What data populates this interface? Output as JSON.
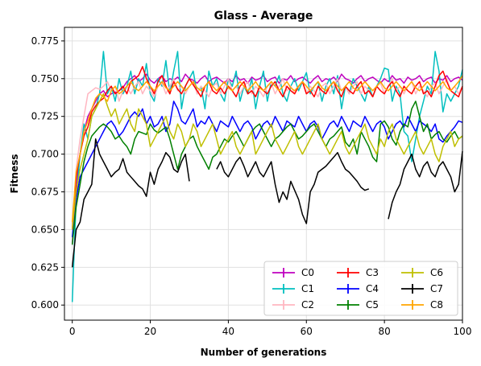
{
  "chart_data": {
    "type": "line",
    "title": "Glass - Average",
    "xlabel": "Number of generations",
    "ylabel": "Fitness",
    "xlim": [
      -2,
      100
    ],
    "ylim": [
      0.59,
      0.784
    ],
    "xticks": [
      0,
      20,
      40,
      60,
      80,
      100
    ],
    "yticks": [
      0.6,
      0.625,
      0.65,
      0.675,
      0.7,
      0.725,
      0.75,
      0.775
    ],
    "x_tick_labels": [
      "0",
      "20",
      "40",
      "60",
      "80",
      "100"
    ],
    "y_tick_labels": [
      "0.600",
      "0.625",
      "0.650",
      "0.675",
      "0.700",
      "0.725",
      "0.750",
      "0.775"
    ],
    "grid": true,
    "legend": {
      "placement": "lower-right",
      "columns": 3
    },
    "series": [
      {
        "name": "C0",
        "color": "#bf00bf",
        "values": [
          0.64,
          0.68,
          0.7,
          0.715,
          0.725,
          0.73,
          0.735,
          0.74,
          0.742,
          0.738,
          0.74,
          0.741,
          0.742,
          0.744,
          0.748,
          0.75,
          0.752,
          0.748,
          0.75,
          0.753,
          0.749,
          0.747,
          0.75,
          0.752,
          0.748,
          0.75,
          0.749,
          0.751,
          0.748,
          0.753,
          0.75,
          0.749,
          0.747,
          0.75,
          0.752,
          0.748,
          0.75,
          0.751,
          0.749,
          0.747,
          0.75,
          0.748,
          0.752,
          0.749,
          0.75,
          0.747,
          0.751,
          0.749,
          0.75,
          0.752,
          0.748,
          0.75,
          0.751,
          0.747,
          0.75,
          0.749,
          0.752,
          0.748,
          0.75,
          0.751,
          0.749,
          0.747,
          0.75,
          0.752,
          0.748,
          0.75,
          0.749,
          0.751,
          0.748,
          0.753,
          0.75,
          0.749,
          0.747,
          0.75,
          0.752,
          0.748,
          0.75,
          0.751,
          0.749,
          0.747,
          0.75,
          0.748,
          0.752,
          0.749,
          0.75,
          0.747,
          0.751,
          0.749,
          0.75,
          0.752,
          0.748,
          0.75,
          0.751,
          0.747,
          0.75,
          0.749,
          0.752,
          0.748,
          0.75,
          0.751,
          0.749
        ]
      },
      {
        "name": "C1",
        "color": "#00bfbf",
        "values": [
          0.602,
          0.67,
          0.7,
          0.72,
          0.71,
          0.725,
          0.73,
          0.74,
          0.768,
          0.74,
          0.745,
          0.735,
          0.75,
          0.74,
          0.745,
          0.755,
          0.74,
          0.75,
          0.745,
          0.76,
          0.74,
          0.735,
          0.75,
          0.745,
          0.762,
          0.74,
          0.755,
          0.768,
          0.73,
          0.745,
          0.75,
          0.755,
          0.74,
          0.745,
          0.73,
          0.755,
          0.745,
          0.75,
          0.74,
          0.735,
          0.75,
          0.745,
          0.755,
          0.735,
          0.745,
          0.74,
          0.75,
          0.73,
          0.745,
          0.755,
          0.735,
          0.748,
          0.745,
          0.752,
          0.74,
          0.735,
          0.745,
          0.75,
          0.742,
          0.748,
          0.754,
          0.74,
          0.745,
          0.748,
          0.735,
          0.745,
          0.75,
          0.74,
          0.752,
          0.73,
          0.745,
          0.74,
          0.75,
          0.745,
          0.74,
          0.735,
          0.745,
          0.738,
          0.745,
          0.75,
          0.757,
          0.756,
          0.735,
          0.745,
          0.74,
          0.715,
          0.712,
          0.695,
          0.71,
          0.725,
          0.735,
          0.745,
          0.74,
          0.768,
          0.755,
          0.728,
          0.74,
          0.735,
          0.74,
          0.745,
          0.756
        ]
      },
      {
        "name": "C2",
        "color": "#ffb6c1",
        "values": [
          0.65,
          0.69,
          0.71,
          0.725,
          0.74,
          0.742,
          0.744,
          0.743,
          0.745,
          0.748,
          0.742,
          0.745,
          0.735,
          0.742,
          0.745,
          0.74,
          0.745,
          0.748,
          0.74,
          0.745,
          0.742,
          0.738,
          0.745,
          0.747,
          0.74,
          0.745,
          0.75,
          0.742,
          0.745,
          0.74,
          0.745,
          0.748,
          0.74,
          0.745,
          0.742,
          0.738,
          0.745,
          0.747,
          0.74,
          0.745,
          0.75,
          0.742,
          0.745,
          0.74,
          0.745,
          0.748,
          0.74,
          0.745,
          0.742,
          0.738,
          0.745,
          0.747,
          0.74,
          0.745,
          0.75,
          0.742,
          0.745,
          0.74,
          0.745,
          0.748,
          0.74,
          0.745,
          0.742,
          0.738,
          0.745,
          0.747,
          0.74,
          0.745,
          0.75,
          0.742,
          0.745,
          0.74,
          0.745,
          0.748,
          0.74,
          0.745,
          0.742,
          0.738,
          0.745,
          0.747,
          0.74,
          0.745,
          0.75,
          0.742,
          0.745,
          0.74,
          0.745,
          0.748,
          0.74,
          0.745,
          0.742,
          0.738,
          0.745,
          0.747,
          0.74,
          0.745,
          0.75,
          0.742,
          0.745,
          0.74,
          0.745
        ]
      },
      {
        "name": "C3",
        "color": "#ff0000",
        "values": [
          0.65,
          0.685,
          0.7,
          0.712,
          0.718,
          0.728,
          0.732,
          0.735,
          0.737,
          0.742,
          0.745,
          0.74,
          0.742,
          0.745,
          0.74,
          0.748,
          0.75,
          0.752,
          0.758,
          0.75,
          0.745,
          0.74,
          0.748,
          0.752,
          0.745,
          0.74,
          0.748,
          0.743,
          0.74,
          0.745,
          0.75,
          0.746,
          0.742,
          0.738,
          0.745,
          0.748,
          0.742,
          0.74,
          0.744,
          0.74,
          0.745,
          0.742,
          0.738,
          0.745,
          0.748,
          0.74,
          0.742,
          0.738,
          0.745,
          0.742,
          0.74,
          0.745,
          0.748,
          0.742,
          0.738,
          0.745,
          0.742,
          0.74,
          0.745,
          0.748,
          0.74,
          0.742,
          0.738,
          0.745,
          0.742,
          0.74,
          0.745,
          0.748,
          0.742,
          0.738,
          0.745,
          0.742,
          0.74,
          0.745,
          0.748,
          0.74,
          0.742,
          0.738,
          0.745,
          0.742,
          0.74,
          0.745,
          0.748,
          0.742,
          0.738,
          0.745,
          0.742,
          0.74,
          0.745,
          0.748,
          0.74,
          0.742,
          0.738,
          0.745,
          0.752,
          0.755,
          0.748,
          0.742,
          0.74,
          0.738,
          0.745
        ]
      },
      {
        "name": "C4",
        "color": "#0000ff",
        "values": [
          0.645,
          0.67,
          0.685,
          0.69,
          0.695,
          0.7,
          0.705,
          0.71,
          0.715,
          0.72,
          0.722,
          0.718,
          0.712,
          0.715,
          0.72,
          0.725,
          0.728,
          0.725,
          0.73,
          0.72,
          0.725,
          0.718,
          0.72,
          0.725,
          0.715,
          0.72,
          0.735,
          0.73,
          0.722,
          0.72,
          0.725,
          0.73,
          0.718,
          0.722,
          0.72,
          0.725,
          0.72,
          0.715,
          0.722,
          0.72,
          0.718,
          0.725,
          0.72,
          0.715,
          0.72,
          0.722,
          0.718,
          0.71,
          0.715,
          0.72,
          0.722,
          0.718,
          0.725,
          0.72,
          0.715,
          0.722,
          0.72,
          0.718,
          0.725,
          0.72,
          0.715,
          0.72,
          0.722,
          0.718,
          0.71,
          0.715,
          0.72,
          0.722,
          0.718,
          0.725,
          0.72,
          0.715,
          0.722,
          0.72,
          0.718,
          0.725,
          0.72,
          0.715,
          0.72,
          0.722,
          0.718,
          0.71,
          0.715,
          0.72,
          0.722,
          0.718,
          0.725,
          0.72,
          0.715,
          0.722,
          0.72,
          0.718,
          0.715,
          0.72,
          0.71,
          0.708,
          0.712,
          0.715,
          0.718,
          0.722,
          0.721
        ]
      },
      {
        "name": "C5",
        "color": "#008000",
        "values": [
          0.64,
          0.665,
          0.68,
          0.695,
          0.705,
          0.712,
          0.715,
          0.718,
          0.72,
          0.718,
          0.715,
          0.71,
          0.712,
          0.708,
          0.705,
          0.7,
          0.71,
          0.715,
          0.714,
          0.713,
          0.72,
          0.716,
          0.714,
          0.716,
          0.718,
          0.71,
          0.7,
          0.69,
          0.7,
          0.705,
          0.71,
          0.712,
          0.705,
          0.7,
          0.695,
          0.69,
          0.698,
          0.7,
          0.705,
          0.71,
          0.708,
          0.712,
          0.715,
          0.71,
          0.705,
          0.71,
          0.715,
          0.718,
          0.72,
          0.715,
          0.71,
          0.705,
          0.71,
          0.712,
          0.715,
          0.718,
          0.72,
          0.715,
          0.71,
          0.712,
          0.715,
          0.718,
          0.72,
          0.715,
          0.71,
          0.705,
          0.71,
          0.712,
          0.715,
          0.718,
          0.708,
          0.705,
          0.71,
          0.7,
          0.715,
          0.71,
          0.705,
          0.698,
          0.695,
          0.72,
          0.722,
          0.718,
          0.71,
          0.706,
          0.715,
          0.72,
          0.718,
          0.73,
          0.735,
          0.725,
          0.715,
          0.72,
          0.71,
          0.713,
          0.715,
          0.71,
          0.708,
          0.712,
          0.715,
          0.71,
          0.712
        ]
      },
      {
        "name": "C6",
        "color": "#bfbf00",
        "values": [
          0.65,
          0.675,
          0.69,
          0.7,
          0.71,
          0.725,
          0.73,
          0.735,
          0.74,
          0.732,
          0.725,
          0.73,
          0.72,
          0.725,
          0.73,
          0.72,
          0.715,
          0.73,
          0.725,
          0.72,
          0.705,
          0.71,
          0.715,
          0.72,
          0.725,
          0.715,
          0.71,
          0.72,
          0.715,
          0.705,
          0.71,
          0.72,
          0.715,
          0.705,
          0.71,
          0.715,
          0.72,
          0.71,
          0.7,
          0.705,
          0.71,
          0.715,
          0.705,
          0.7,
          0.705,
          0.71,
          0.715,
          0.7,
          0.705,
          0.71,
          0.715,
          0.72,
          0.71,
          0.705,
          0.7,
          0.705,
          0.71,
          0.715,
          0.705,
          0.7,
          0.705,
          0.71,
          0.715,
          0.72,
          0.71,
          0.705,
          0.7,
          0.705,
          0.71,
          0.715,
          0.705,
          0.7,
          0.705,
          0.71,
          0.715,
          0.72,
          0.71,
          0.705,
          0.7,
          0.71,
          0.705,
          0.715,
          0.72,
          0.71,
          0.705,
          0.7,
          0.705,
          0.71,
          0.715,
          0.705,
          0.7,
          0.705,
          0.71,
          0.7,
          0.695,
          0.705,
          0.71,
          0.715,
          0.705,
          0.71,
          0.712
        ]
      },
      {
        "name": "C7",
        "color": "#000000",
        "values": [
          0.625,
          0.65,
          0.655,
          0.67,
          0.675,
          0.68,
          0.71,
          0.7,
          0.695,
          0.69,
          0.685,
          0.688,
          0.69,
          0.697,
          0.688,
          0.685,
          0.682,
          0.679,
          0.677,
          0.672,
          0.688,
          0.68,
          0.69,
          0.695,
          0.701,
          0.698,
          0.69,
          0.688,
          0.695,
          0.7,
          0.682,
          null,
          null,
          null,
          null,
          null,
          null,
          0.69,
          0.695,
          0.688,
          0.685,
          0.69,
          0.695,
          0.698,
          0.692,
          0.685,
          0.69,
          0.695,
          0.688,
          0.685,
          0.69,
          0.695,
          0.68,
          0.668,
          0.675,
          0.67,
          0.682,
          0.676,
          0.67,
          0.66,
          0.654,
          0.675,
          0.68,
          0.688,
          0.69,
          0.692,
          0.695,
          0.698,
          0.701,
          0.695,
          0.69,
          0.688,
          0.685,
          0.682,
          0.678,
          0.676,
          0.677,
          null,
          null,
          null,
          null,
          0.657,
          0.668,
          0.675,
          0.68,
          0.69,
          0.695,
          0.7,
          0.69,
          0.685,
          0.692,
          0.695,
          0.688,
          0.685,
          0.692,
          0.695,
          0.69,
          0.685,
          0.675,
          0.68,
          0.702
        ]
      },
      {
        "name": "C8",
        "color": "#ffa500",
        "values": [
          0.655,
          0.688,
          0.7,
          0.715,
          0.722,
          0.73,
          0.737,
          0.74,
          0.738,
          0.735,
          0.742,
          0.745,
          0.74,
          0.742,
          0.745,
          0.748,
          0.744,
          0.742,
          0.745,
          0.748,
          0.745,
          0.742,
          0.745,
          0.748,
          0.744,
          0.742,
          0.745,
          0.748,
          0.745,
          0.742,
          0.745,
          0.748,
          0.744,
          0.742,
          0.745,
          0.748,
          0.745,
          0.742,
          0.745,
          0.748,
          0.744,
          0.742,
          0.745,
          0.748,
          0.745,
          0.742,
          0.745,
          0.748,
          0.744,
          0.742,
          0.745,
          0.748,
          0.745,
          0.742,
          0.745,
          0.748,
          0.744,
          0.742,
          0.745,
          0.748,
          0.745,
          0.742,
          0.745,
          0.748,
          0.744,
          0.742,
          0.745,
          0.748,
          0.745,
          0.742,
          0.745,
          0.748,
          0.744,
          0.742,
          0.745,
          0.748,
          0.745,
          0.742,
          0.745,
          0.748,
          0.744,
          0.742,
          0.745,
          0.748,
          0.745,
          0.742,
          0.745,
          0.748,
          0.744,
          0.742,
          0.745,
          0.748,
          0.745,
          0.742,
          0.745,
          0.748,
          0.744,
          0.742,
          0.745,
          0.748,
          0.752
        ]
      }
    ]
  }
}
